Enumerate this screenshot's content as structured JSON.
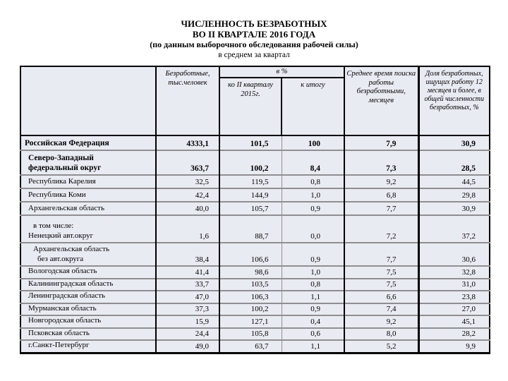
{
  "title": {
    "line1": "ЧИСЛЕННОСТЬ БЕЗРАБОТНЫХ",
    "line2": "ВО II КВАРТАЛЕ 2016 ГОДА",
    "line3": "(по данным выборочного обследования рабочей силы)",
    "line4": "в среднем за квартал"
  },
  "colors": {
    "cell_background": "#e9ebf2",
    "grid": "#8f8f8f",
    "frame": "#000000",
    "page_background": "#ffffff"
  },
  "table": {
    "headers": {
      "region": "",
      "unemployed": "Безработные, тыс.человек",
      "percent_group": "в %",
      "percent_to_2015": "ко II кварталу 2015г.",
      "percent_to_total": "к итогу",
      "avg_search_time": "Среднее время поиска работы безработными, месяцев",
      "share_12_months": "Доля безработных, ищущих работу 12 месяцев и более, в общей численности безработных, %"
    },
    "rows": [
      {
        "lines": [
          {
            "text": "Российская Федерация",
            "indent": 0
          }
        ],
        "bold": true,
        "values": [
          "4333,1",
          "101,5",
          "100",
          "7,9",
          "30,9"
        ]
      },
      {
        "lines": [
          {
            "text": "Северо-Западный",
            "indent": 1
          },
          {
            "text": "федеральный округ",
            "indent": 1
          }
        ],
        "bold": true,
        "values": [
          "363,7",
          "100,2",
          "8,4",
          "7,3",
          "28,5"
        ]
      },
      {
        "lines": [
          {
            "text": "Республика Карелия",
            "indent": 1
          }
        ],
        "bold": false,
        "values": [
          "32,5",
          "119,5",
          "0,8",
          "9,2",
          "44,5"
        ]
      },
      {
        "lines": [
          {
            "text": "Республика Коми",
            "indent": 1
          }
        ],
        "bold": false,
        "values": [
          "42,4",
          "144,9",
          "1,0",
          "6,8",
          "29,8"
        ]
      },
      {
        "lines": [
          {
            "text": "Архангельская область",
            "indent": 1
          }
        ],
        "bold": false,
        "values": [
          "40,0",
          "105,7",
          "0,9",
          "7,7",
          "30,9"
        ]
      },
      {
        "lines": [
          {
            "text": "в том числе:",
            "indent": 2
          },
          {
            "text": "Ненецкий авт.округ",
            "indent": 1
          }
        ],
        "bold": false,
        "values": [
          "1,6",
          "88,7",
          "0,0",
          "7,2",
          "37,2"
        ]
      },
      {
        "lines": [
          {
            "text": "Архангельская область",
            "indent": 2
          },
          {
            "text": "без авт.округа",
            "indent": 3
          }
        ],
        "bold": false,
        "values": [
          "38,4",
          "106,6",
          "0,9",
          "7,7",
          "30,6"
        ]
      },
      {
        "lines": [
          {
            "text": "Вологодская область",
            "indent": 1
          }
        ],
        "bold": false,
        "values": [
          "41,4",
          "98,6",
          "1,0",
          "7,5",
          "32,8"
        ]
      },
      {
        "lines": [
          {
            "text": "Калининградская область",
            "indent": 1
          }
        ],
        "bold": false,
        "values": [
          "33,7",
          "103,5",
          "0,8",
          "7,5",
          "31,0"
        ]
      },
      {
        "lines": [
          {
            "text": "Ленинградская область",
            "indent": 1
          }
        ],
        "bold": false,
        "values": [
          "47,0",
          "106,3",
          "1,1",
          "6,6",
          "23,8"
        ]
      },
      {
        "lines": [
          {
            "text": "Мурманская область",
            "indent": 1
          }
        ],
        "bold": false,
        "values": [
          "37,3",
          "100,2",
          "0,9",
          "7,4",
          "27,0"
        ]
      },
      {
        "lines": [
          {
            "text": "Новгородская область",
            "indent": 1
          }
        ],
        "bold": false,
        "values": [
          "15,9",
          "127,1",
          "0,4",
          "9,2",
          "45,1"
        ]
      },
      {
        "lines": [
          {
            "text": "Псковская область",
            "indent": 1
          }
        ],
        "bold": false,
        "values": [
          "24,4",
          "105,8",
          "0,6",
          "8,0",
          "28,2"
        ]
      },
      {
        "lines": [
          {
            "text": "г.Санкт-Петербург",
            "indent": 1
          }
        ],
        "bold": false,
        "values": [
          "49,0",
          "63,7",
          "1,1",
          "5,2",
          "9,9"
        ]
      }
    ]
  }
}
